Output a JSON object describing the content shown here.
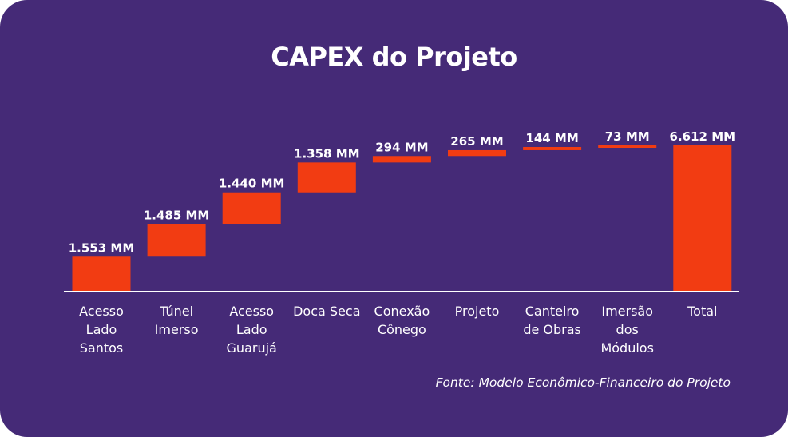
{
  "chart_data": {
    "type": "waterfall",
    "title": "CAPEX do Projeto",
    "source": "Fonte: Modelo Econômico-Financeiro do Projeto",
    "unit": "MM",
    "bar_color": "#f23c12",
    "background_color": "#452a77",
    "categories": [
      [
        "Acesso",
        "Lado",
        "Santos"
      ],
      [
        "Túnel",
        "Imerso"
      ],
      [
        "Acesso",
        "Lado",
        "Guarujá"
      ],
      [
        "Doca Seca"
      ],
      [
        "Conexão",
        "Cônego"
      ],
      [
        "Projeto"
      ],
      [
        "Canteiro",
        "de Obras"
      ],
      [
        "Imersão",
        "dos",
        "Módulos"
      ],
      [
        "Total"
      ]
    ],
    "values": [
      1553,
      1485,
      1440,
      1358,
      294,
      265,
      144,
      73,
      6612
    ],
    "labels": [
      "1.553 MM",
      "1.485 MM",
      "1.440 MM",
      "1.358 MM",
      "294 MM",
      "265 MM",
      "144 MM",
      "73 MM",
      "6.612 MM"
    ],
    "total_index": 8
  }
}
